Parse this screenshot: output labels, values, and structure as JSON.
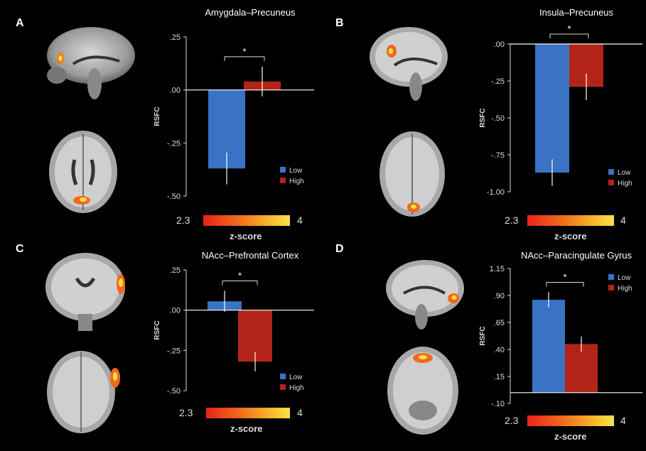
{
  "panels": [
    {
      "letter": "A"
    },
    {
      "letter": "B"
    },
    {
      "letter": "C"
    },
    {
      "letter": "D"
    }
  ],
  "colorbar": {
    "min_label": "2.3",
    "max_label": "4",
    "title": "z-score",
    "colors": [
      "#e8231a",
      "#f06a1c",
      "#f7b52a",
      "#fbe24a"
    ]
  },
  "chart_data": [
    {
      "type": "bar",
      "title": "Amygdala–Precuneus",
      "ylabel": "RSFC",
      "categories": [
        "Low",
        "High"
      ],
      "series": [
        {
          "name": "Low",
          "value": -0.37,
          "error": 0.075,
          "color": "#3a72c4"
        },
        {
          "name": "High",
          "value": 0.04,
          "error": 0.07,
          "color": "#b32418"
        }
      ],
      "yticks": [
        ".25",
        ".00",
        "-.25",
        "-.50"
      ],
      "ylim": [
        -0.5,
        0.25
      ],
      "significance": "*",
      "legend": [
        "Low",
        "High"
      ],
      "legend_position": "bottom-right"
    },
    {
      "type": "bar",
      "title": "Insula–Precuneus",
      "ylabel": "RSFC",
      "categories": [
        "Low",
        "High"
      ],
      "series": [
        {
          "name": "Low",
          "value": -0.87,
          "error": 0.09,
          "color": "#3a72c4"
        },
        {
          "name": "High",
          "value": -0.29,
          "error": 0.09,
          "color": "#b32418"
        }
      ],
      "yticks": [
        ".00",
        "-.25",
        "-.50",
        "-.75",
        "-1.00"
      ],
      "ylim": [
        -1.0,
        0.0
      ],
      "significance": "*",
      "legend": [
        "Low",
        "High"
      ],
      "legend_position": "bottom-right"
    },
    {
      "type": "bar",
      "title": "NAcc–Prefrontal Cortex",
      "ylabel": "RSFC",
      "categories": [
        "Low",
        "High"
      ],
      "series": [
        {
          "name": "Low",
          "value": 0.055,
          "error": 0.065,
          "color": "#3a72c4"
        },
        {
          "name": "High",
          "value": -0.32,
          "error": 0.06,
          "color": "#b32418"
        }
      ],
      "yticks": [
        ".25",
        ".00",
        "-.25",
        "-.50"
      ],
      "ylim": [
        -0.5,
        0.25
      ],
      "significance": "*",
      "legend": [
        "Low",
        "High"
      ],
      "legend_position": "bottom-right"
    },
    {
      "type": "bar",
      "title": "NAcc–Paracingulate Gyrus",
      "ylabel": "RSFC",
      "categories": [
        "Low",
        "High"
      ],
      "series": [
        {
          "name": "Low",
          "value": 0.86,
          "error": 0.07,
          "color": "#3a72c4"
        },
        {
          "name": "High",
          "value": 0.45,
          "error": 0.07,
          "color": "#b32418"
        }
      ],
      "yticks": [
        "1.15",
        ".90",
        ".65",
        ".40",
        ".15",
        "-.10"
      ],
      "ylim": [
        -0.1,
        1.15
      ],
      "significance": "*",
      "legend": [
        "Low",
        "High"
      ],
      "legend_position": "top-right"
    }
  ]
}
